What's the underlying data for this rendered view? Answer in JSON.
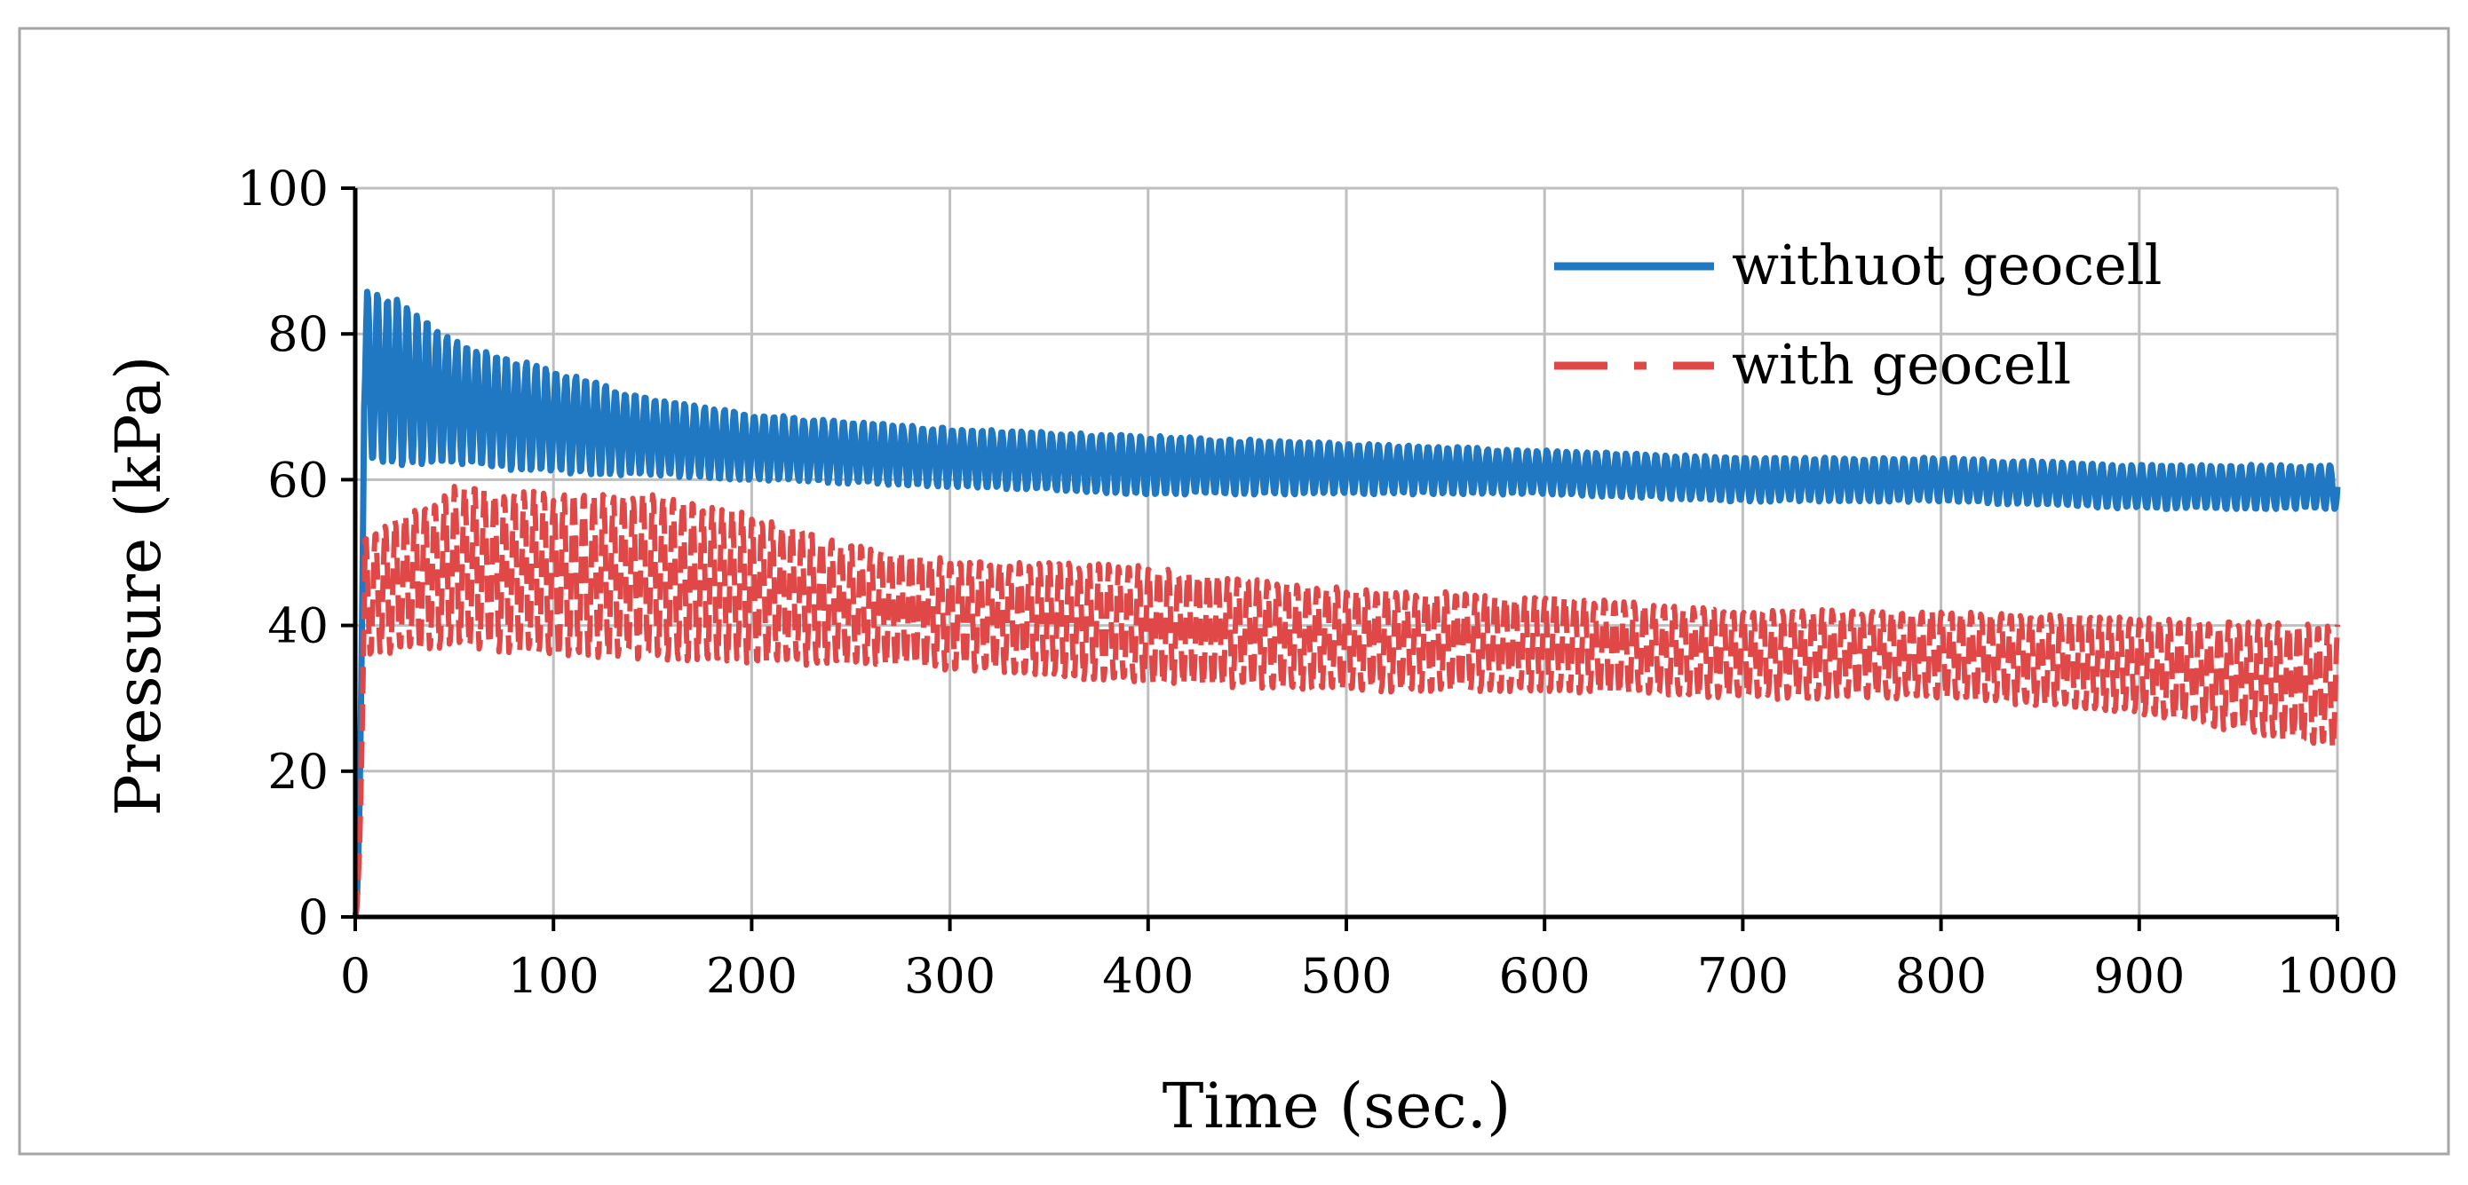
{
  "chart_data": {
    "type": "line",
    "xlabel": "Time (sec.)",
    "ylabel": "Pressure (kPa)",
    "xlim": [
      0,
      1000
    ],
    "ylim": [
      0,
      100
    ],
    "xticks": [
      0,
      100,
      200,
      300,
      400,
      500,
      600,
      700,
      800,
      900,
      1000
    ],
    "yticks": [
      0,
      20,
      40,
      60,
      80,
      100
    ],
    "grid": true,
    "legend_position": "top-right",
    "series": [
      {
        "name": "withuot geocell",
        "color": "#1f78c1",
        "line_style": "solid",
        "oscillating": true,
        "period_sec": 5,
        "upper": [
          [
            0,
            0
          ],
          [
            5,
            86
          ],
          [
            20,
            85
          ],
          [
            50,
            79
          ],
          [
            100,
            75
          ],
          [
            150,
            71
          ],
          [
            200,
            69
          ],
          [
            300,
            67
          ],
          [
            400,
            66
          ],
          [
            500,
            65
          ],
          [
            600,
            64
          ],
          [
            700,
            63
          ],
          [
            800,
            63
          ],
          [
            900,
            62
          ],
          [
            1000,
            62
          ]
        ],
        "lower": [
          [
            0,
            0
          ],
          [
            5,
            62
          ],
          [
            50,
            62
          ],
          [
            100,
            61
          ],
          [
            200,
            60
          ],
          [
            300,
            59
          ],
          [
            400,
            58
          ],
          [
            500,
            58
          ],
          [
            600,
            58
          ],
          [
            700,
            57
          ],
          [
            800,
            57
          ],
          [
            900,
            56
          ],
          [
            1000,
            56
          ]
        ]
      },
      {
        "name": "with geocell",
        "color": "#e04848",
        "line_style": "dashed",
        "oscillating": true,
        "period_sec": 5,
        "upper": [
          [
            0,
            0
          ],
          [
            5,
            52
          ],
          [
            50,
            59
          ],
          [
            100,
            58
          ],
          [
            150,
            58
          ],
          [
            200,
            55
          ],
          [
            250,
            51
          ],
          [
            300,
            49
          ],
          [
            400,
            48
          ],
          [
            500,
            45
          ],
          [
            600,
            44
          ],
          [
            700,
            42
          ],
          [
            800,
            42
          ],
          [
            900,
            41
          ],
          [
            1000,
            40
          ]
        ],
        "lower": [
          [
            0,
            0
          ],
          [
            5,
            36
          ],
          [
            50,
            37
          ],
          [
            100,
            36
          ],
          [
            200,
            35
          ],
          [
            300,
            34
          ],
          [
            400,
            32
          ],
          [
            500,
            31
          ],
          [
            600,
            31
          ],
          [
            700,
            30
          ],
          [
            800,
            30
          ],
          [
            900,
            28
          ],
          [
            1000,
            23
          ]
        ]
      }
    ]
  }
}
